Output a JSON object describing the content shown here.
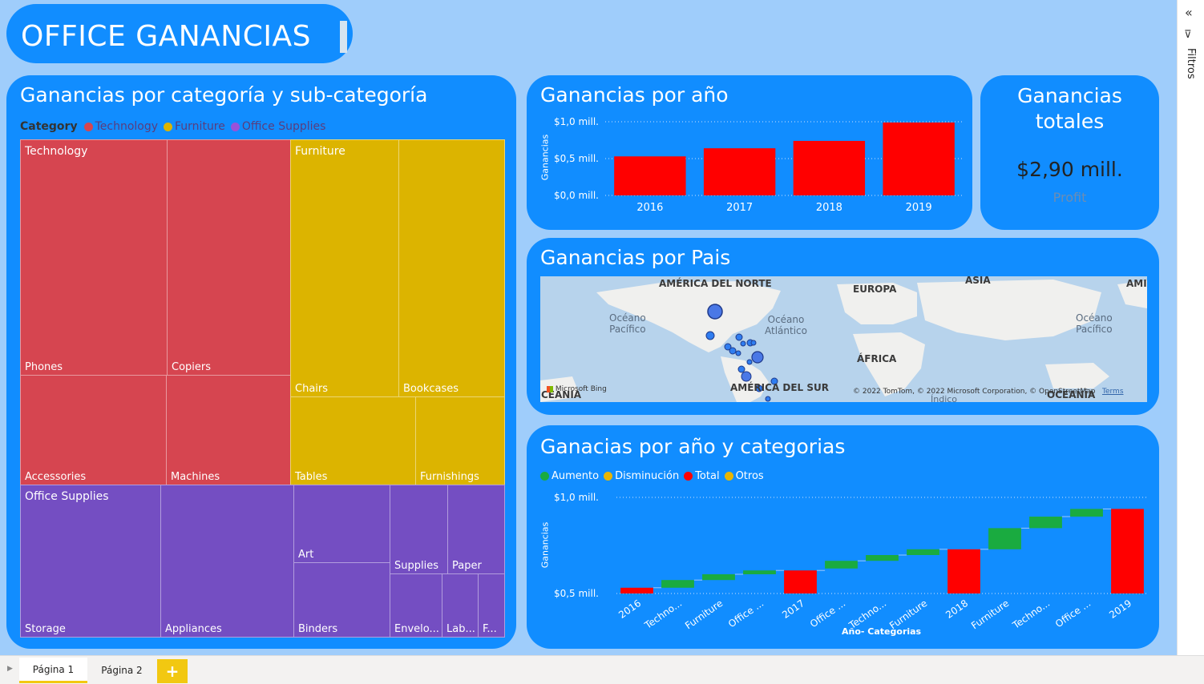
{
  "header": {
    "title": "OFFICE GANANCIAS"
  },
  "colors": {
    "background": "#9fcdfb",
    "card": "#118dff",
    "technology": "#d64550",
    "furniture": "#dcb400",
    "office_supplies": "#744ec2",
    "increase": "#1aab40",
    "decrease": "#e8b500",
    "total": "#ff0000"
  },
  "treemap": {
    "title": "Ganancias por categoría y sub-categoría",
    "legend_label": "Category",
    "legend": [
      "Technology",
      "Furniture",
      "Office Supplies"
    ],
    "categories": [
      {
        "name": "Technology",
        "subcategories": [
          "Phones",
          "Copiers",
          "Accessories",
          "Machines"
        ]
      },
      {
        "name": "Furniture",
        "subcategories": [
          "Chairs",
          "Bookcases",
          "Tables",
          "Furnishings"
        ]
      },
      {
        "name": "Office Supplies",
        "subcategories": [
          "Storage",
          "Appliances",
          "Art",
          "Binders",
          "Supplies",
          "Paper",
          "Envelo...",
          "Lab...",
          "F..."
        ]
      }
    ]
  },
  "year_chart": {
    "title": "Ganancias por año",
    "ylabel": "Ganancias",
    "chart_data": {
      "type": "bar",
      "categories": [
        "2016",
        "2017",
        "2018",
        "2019"
      ],
      "values": [
        0.53,
        0.64,
        0.74,
        0.99
      ],
      "ylim": [
        0,
        1.0
      ],
      "yticks": [
        "$0,0 mill.",
        "$0,5 mill.",
        "$1,0 mill."
      ],
      "ytick_values": [
        0,
        0.5,
        1.0
      ],
      "color": "#ff0000",
      "grid": true
    }
  },
  "kpi": {
    "title_line1": "Ganancias",
    "title_line2": "totales",
    "value": "$2,90 mill.",
    "label": "Profit"
  },
  "map": {
    "title": "Ganancias por Pais",
    "continents": [
      "AMÉRICA DEL NORTE",
      "EUROPA",
      "ASIA",
      "AMI",
      "ÁFRICA",
      "AMÉRICA DEL SUR",
      "CEANIA",
      "OCEANÍA"
    ],
    "oceans": [
      "Océano",
      "Pacífico",
      "Océano",
      "Atlántico",
      "Océano",
      "Pacífico",
      "Índico"
    ],
    "bing": "Microsoft Bing",
    "attribution": "© 2022 TomTom, © 2022 Microsoft Corporation, © OpenStreetMap",
    "terms": "Terms"
  },
  "waterfall": {
    "title": "Ganacias por año y categorias",
    "legend": [
      "Aumento",
      "Disminución",
      "Total",
      "Otros"
    ],
    "ylabel": "Ganancias",
    "xlabel": "Año- Categorias",
    "chart_data": {
      "type": "bar",
      "subtype": "waterfall",
      "categories": [
        "2016",
        "Techno...",
        "Furniture",
        "Office ...",
        "2017",
        "Office ...",
        "Techno...",
        "Furniture",
        "2018",
        "Furniture",
        "Techno...",
        "Office ...",
        "2019"
      ],
      "kind": [
        "total",
        "increase",
        "increase",
        "increase",
        "total",
        "increase",
        "increase",
        "increase",
        "total",
        "increase",
        "increase",
        "increase",
        "total"
      ],
      "start": [
        0.4,
        0.53,
        0.57,
        0.6,
        0.4,
        0.63,
        0.67,
        0.7,
        0.4,
        0.73,
        0.84,
        0.9,
        0.4
      ],
      "end": [
        0.53,
        0.57,
        0.6,
        0.62,
        0.62,
        0.67,
        0.7,
        0.73,
        0.73,
        0.84,
        0.9,
        0.94,
        0.94
      ],
      "ylim": [
        0.4,
        1.0
      ],
      "yticks": [
        "$0,5 mill.",
        "$1,0 mill."
      ],
      "ytick_values": [
        0.5,
        1.0
      ]
    }
  },
  "filters_pane": {
    "label": "Filtros"
  },
  "pages": {
    "tabs": [
      "Página 1",
      "Página 2"
    ],
    "add": "+"
  }
}
